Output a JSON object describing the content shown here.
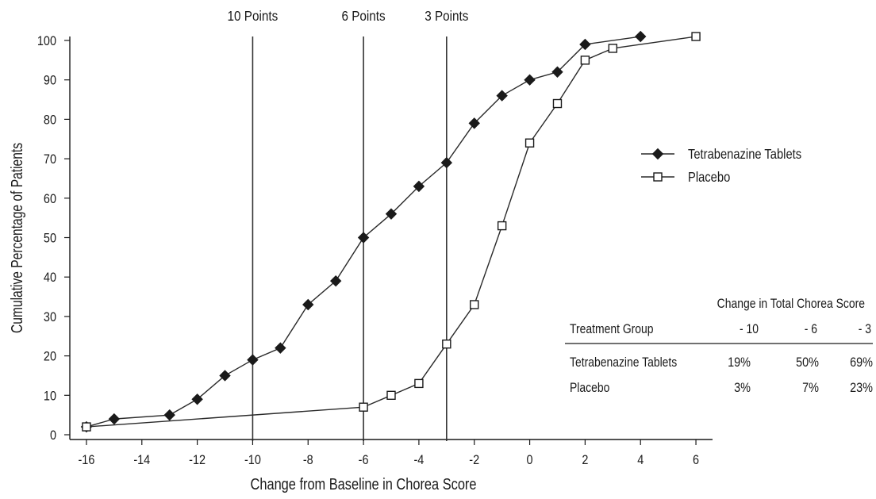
{
  "chart_data": {
    "type": "line",
    "title": "",
    "xlabel": "Change from Baseline in Chorea  Score",
    "ylabel": "Cumulative Percentage of Patients",
    "xlim": [
      -16.6,
      6.6
    ],
    "ylim": [
      0,
      100
    ],
    "x_ticks": [
      -16,
      -14,
      -12,
      -10,
      -8,
      -6,
      -4,
      -2,
      0,
      2,
      4,
      6
    ],
    "y_ticks": [
      0,
      10,
      20,
      30,
      40,
      50,
      60,
      70,
      80,
      90,
      100
    ],
    "grid": false,
    "legend_position": "right",
    "reference_lines": [
      {
        "x": -10,
        "label": "10 Points"
      },
      {
        "x": -6,
        "label": "6 Points"
      },
      {
        "x": -3,
        "label": "3 Points"
      }
    ],
    "series": [
      {
        "name": "Tetrabenazine Tablets",
        "marker": "filled-diamond",
        "points": [
          {
            "x": -16,
            "y": 2
          },
          {
            "x": -15,
            "y": 4
          },
          {
            "x": -13,
            "y": 5
          },
          {
            "x": -12,
            "y": 9
          },
          {
            "x": -11,
            "y": 15
          },
          {
            "x": -10,
            "y": 19
          },
          {
            "x": -9,
            "y": 22
          },
          {
            "x": -8,
            "y": 33
          },
          {
            "x": -7,
            "y": 39
          },
          {
            "x": -6,
            "y": 50
          },
          {
            "x": -5,
            "y": 56
          },
          {
            "x": -4,
            "y": 63
          },
          {
            "x": -3,
            "y": 69
          },
          {
            "x": -2,
            "y": 79
          },
          {
            "x": -1,
            "y": 86
          },
          {
            "x": 0,
            "y": 90
          },
          {
            "x": 1,
            "y": 92
          },
          {
            "x": 2,
            "y": 99
          },
          {
            "x": 4,
            "y": 101
          }
        ]
      },
      {
        "name": "Placebo",
        "marker": "open-square",
        "points": [
          {
            "x": -16,
            "y": 2
          },
          {
            "x": -6,
            "y": 7
          },
          {
            "x": -5,
            "y": 10
          },
          {
            "x": -4,
            "y": 13
          },
          {
            "x": -3,
            "y": 23
          },
          {
            "x": -2,
            "y": 33
          },
          {
            "x": -1,
            "y": 53
          },
          {
            "x": 0,
            "y": 74
          },
          {
            "x": 1,
            "y": 84
          },
          {
            "x": 2,
            "y": 95
          },
          {
            "x": 3,
            "y": 98
          },
          {
            "x": 6,
            "y": 101
          }
        ]
      }
    ],
    "table": {
      "title": "Change in Total Chorea Score",
      "row_header": "Treatment Group",
      "columns": [
        "- 10",
        "- 6",
        "- 3"
      ],
      "rows": [
        {
          "label": "Tetrabenazine Tablets",
          "values": [
            "19%",
            "50%",
            "69%"
          ]
        },
        {
          "label": "Placebo",
          "values": [
            "3%",
            "7%",
            "23%"
          ]
        }
      ]
    }
  }
}
